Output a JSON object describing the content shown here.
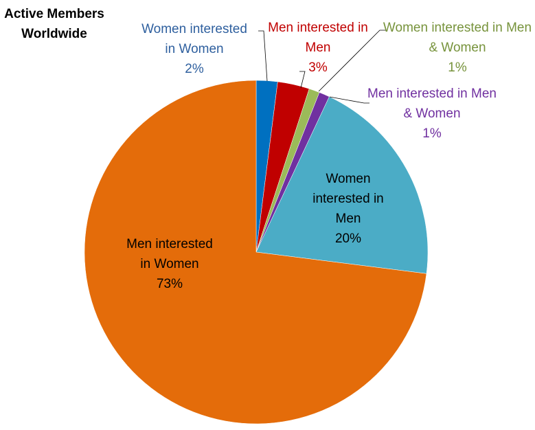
{
  "chart_data": {
    "type": "pie",
    "title": "Active Members Worldwide",
    "categories": [
      "Women interested in Women",
      "Men interested in Men",
      "Women interested in Men & Women",
      "Men interested in Men & Women",
      "Women interested in Men",
      "Men interested in Women"
    ],
    "values": [
      2,
      3,
      1,
      1,
      20,
      73
    ],
    "value_labels": [
      "2%",
      "3%",
      "1%",
      "1%",
      "20%",
      "73%"
    ],
    "colors": [
      "#0070c0",
      "#c00000",
      "#9bbb59",
      "#7030a0",
      "#4bacc6",
      "#e46c0a"
    ]
  }
}
